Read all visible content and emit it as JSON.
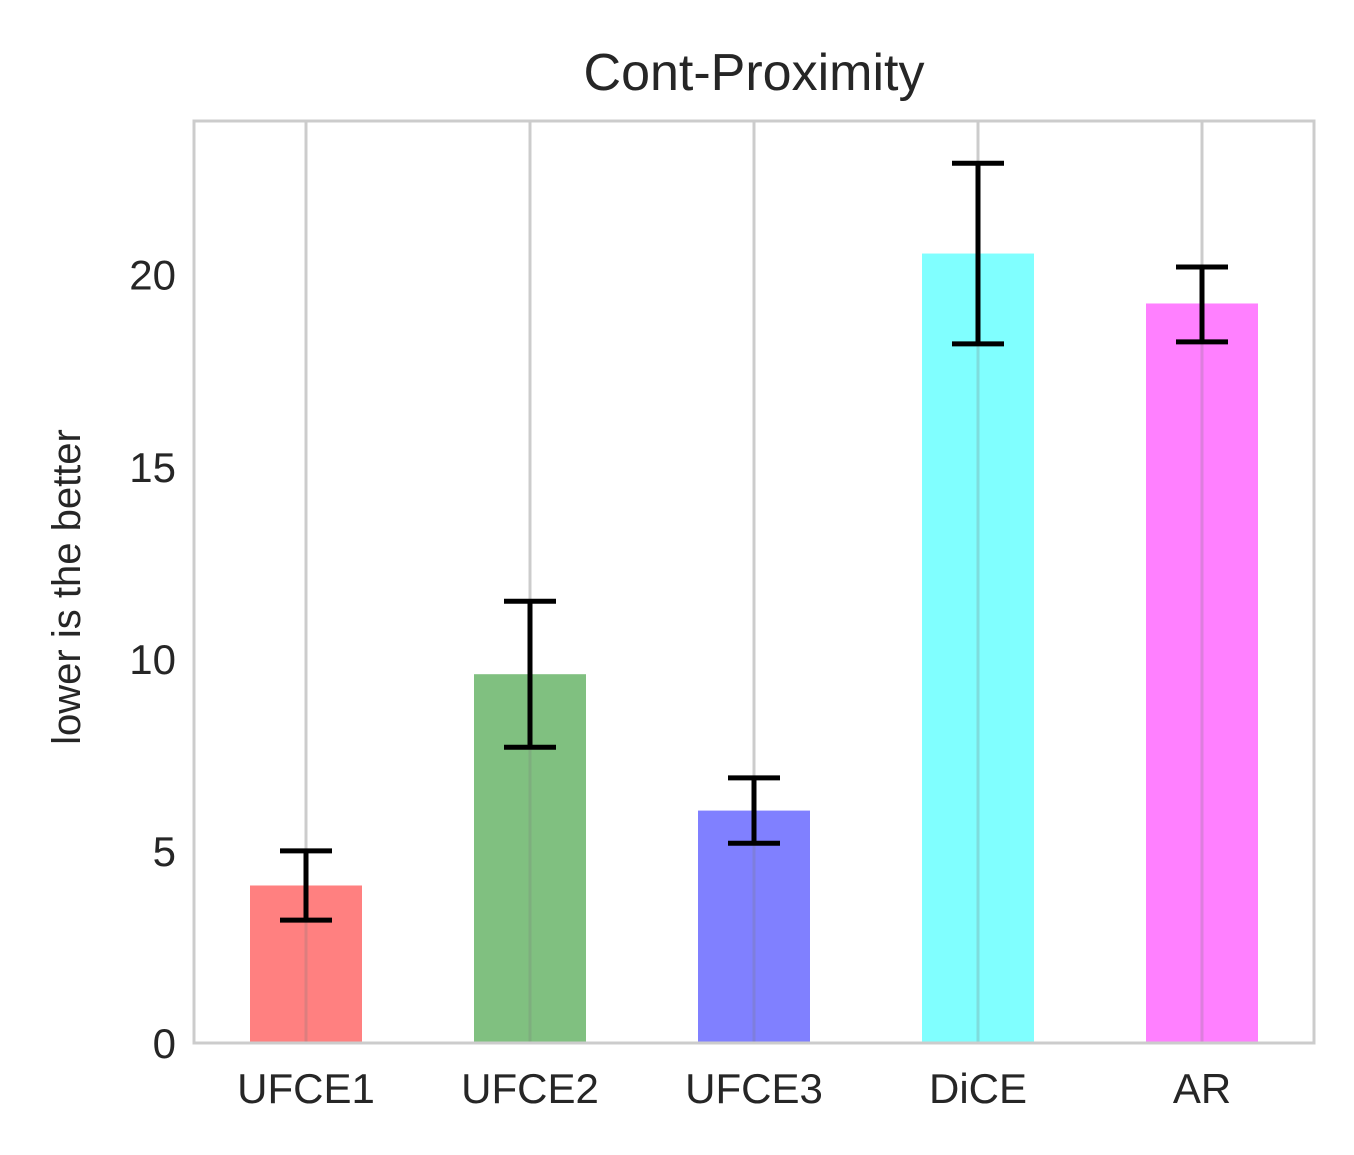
{
  "chart_data": {
    "type": "bar",
    "title": "Cont-Proximity",
    "xlabel": "",
    "ylabel": "lower is the better",
    "categories": [
      "UFCE1",
      "UFCE2",
      "UFCE3",
      "DiCE",
      "AR"
    ],
    "values": [
      4.1,
      9.6,
      6.05,
      20.55,
      19.25
    ],
    "error": [
      {
        "low": 3.2,
        "high": 5.0
      },
      {
        "low": 7.7,
        "high": 11.5
      },
      {
        "low": 5.2,
        "high": 6.9
      },
      {
        "low": 18.2,
        "high": 22.9
      },
      {
        "low": 18.25,
        "high": 20.2
      }
    ],
    "colors": [
      "#ff8080",
      "#80c080",
      "#8080ff",
      "#80ffff",
      "#ff80ff"
    ],
    "ylim": [
      0,
      24
    ],
    "yticks": [
      0,
      5,
      10,
      15,
      20
    ],
    "grid": "vertical"
  }
}
